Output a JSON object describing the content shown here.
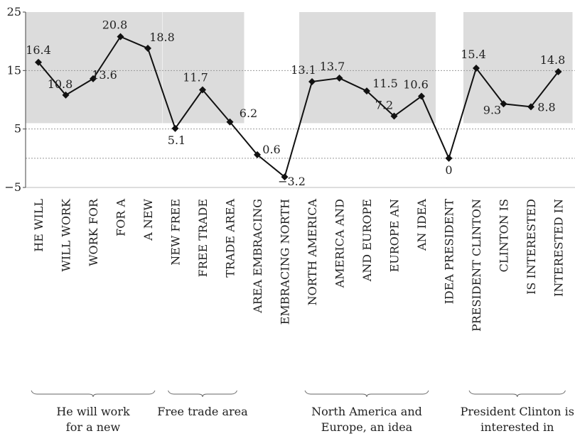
{
  "chart_data": {
    "type": "line",
    "categories": [
      "HE WILL",
      "WILL WORK",
      "WORK FOR",
      "FOR A",
      "A NEW",
      "NEW FREE",
      "FREE TRADE",
      "TRADE AREA",
      "AREA EMBRACING",
      "EMBRACING NORTH",
      "NORTH AMERICA",
      "AMERICA AND",
      "AND EUROPE",
      "EUROPE AN",
      "AN IDEA",
      "IDEA PRESIDENT",
      "PRESIDENT CLINTON",
      "CLINTON IS",
      "IS INTERESTED",
      "INTERESTED IN"
    ],
    "values": [
      16.4,
      10.8,
      13.6,
      20.8,
      18.8,
      5.1,
      11.7,
      6.2,
      0.6,
      -3.2,
      13.1,
      13.7,
      11.5,
      7.2,
      10.6,
      0,
      15.4,
      9.3,
      8.8,
      14.8
    ],
    "value_labels": [
      "16.4",
      "10.8",
      "13.6",
      "20.8",
      "18.8",
      "5.1",
      "11.7",
      "6.2",
      "0.6",
      "−3.2",
      "13.1",
      "13.7",
      "11.5",
      "7.2",
      "10.6",
      "0",
      "15.4",
      "9.3",
      "8.8",
      "14.8"
    ],
    "yticks": [
      "25",
      "15",
      "5",
      "−5"
    ],
    "ytick_values": [
      25,
      15,
      5,
      -5
    ],
    "ylim": [
      -5,
      25
    ],
    "gridlines": [
      15,
      5,
      0
    ],
    "groups": [
      {
        "label_lines": [
          "He will work",
          "for a new"
        ],
        "start": 0,
        "end": 4,
        "shade_from": 6,
        "shade_to": 25
      },
      {
        "label_lines": [
          "Free trade area"
        ],
        "start": 5,
        "end": 7,
        "shade_from": 6,
        "shade_to": 25
      },
      {
        "label_lines": [
          "North America and",
          "Europe, an idea"
        ],
        "start": 10,
        "end": 14,
        "shade_from": 6,
        "shade_to": 25
      },
      {
        "label_lines": [
          "President Clinton is",
          "interested in"
        ],
        "start": 16,
        "end": 19,
        "shade_from": 6,
        "shade_to": 25
      }
    ],
    "colors": {
      "line": "#111111",
      "shade": "#dcdcdc",
      "grid": "#999999"
    },
    "title": "",
    "xlabel": "",
    "ylabel": ""
  }
}
